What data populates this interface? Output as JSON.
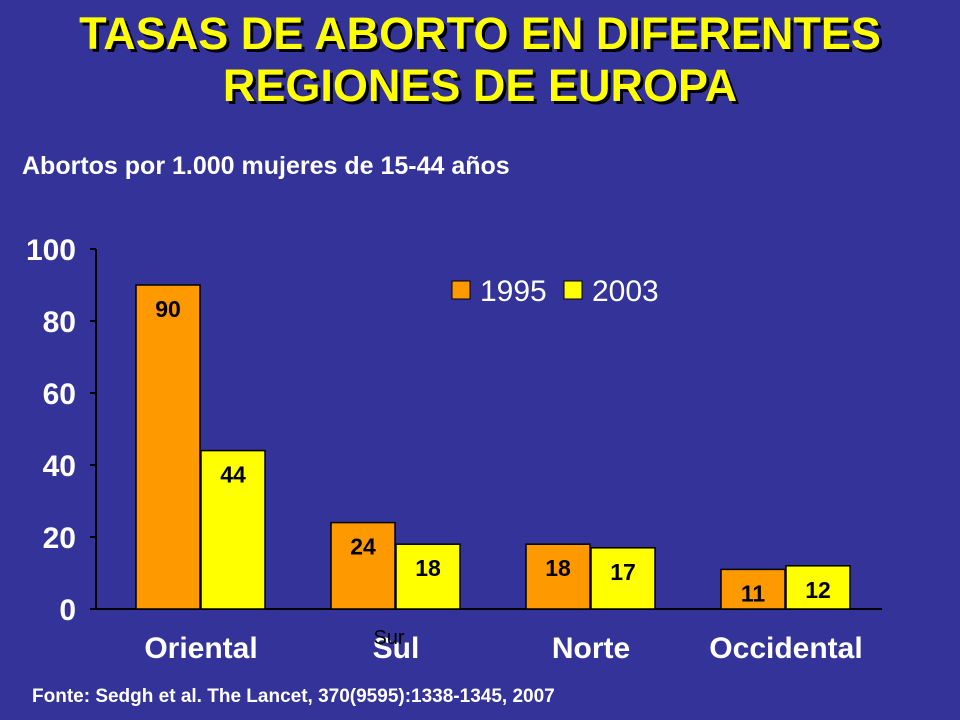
{
  "title_line1": "TASAS DE ABORTO EN DIFERENTES",
  "title_line2": "REGIONES DE  EUROPA",
  "subtitle": "Abortos por 1.000 mujeres de 15-44 años",
  "source": "Fonte: Sedgh et al. The Lancet, 370(9595):1338-1345,  2007",
  "overlay_text": "Sur",
  "colors": {
    "background": "#333399",
    "title": "#ffff00",
    "series_1995": "#ff9900",
    "series_2003": "#ffff00"
  },
  "chart_data": {
    "type": "bar",
    "categories": [
      "Oriental",
      "Sul",
      "Norte",
      "Occidental"
    ],
    "series": [
      {
        "name": "1995",
        "values": [
          90,
          24,
          18,
          11
        ]
      },
      {
        "name": "2003",
        "values": [
          44,
          18,
          17,
          12
        ]
      }
    ],
    "ylim": [
      0,
      100
    ],
    "yticks": [
      0,
      20,
      40,
      60,
      80,
      100
    ],
    "ytick_labels": [
      "0",
      "20",
      "40",
      "60",
      "80",
      "100"
    ],
    "grid": false,
    "legend_position": "top-right"
  }
}
